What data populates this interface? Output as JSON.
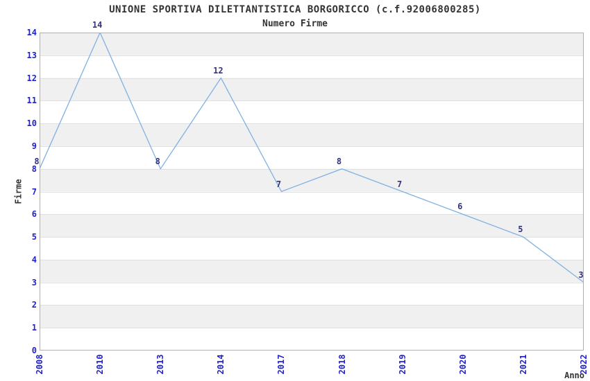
{
  "chart_data": {
    "type": "line",
    "title": "UNIONE SPORTIVA DILETTANTISTICA BORGORICCO (c.f.92006800285)",
    "subtitle": "Numero Firme",
    "xlabel": "Anno",
    "ylabel": "Firme",
    "categories": [
      "2008",
      "2010",
      "2013",
      "2014",
      "2017",
      "2018",
      "2019",
      "2020",
      "2021",
      "2022"
    ],
    "values": [
      8,
      14,
      8,
      12,
      7,
      8,
      7,
      6,
      5,
      3
    ],
    "ylim": [
      0,
      14
    ],
    "y_ticks": [
      0,
      1,
      2,
      3,
      4,
      5,
      6,
      7,
      8,
      9,
      10,
      11,
      12,
      13,
      14
    ],
    "legend": "none",
    "grid": "alternating horizontal bands on odd unit intervals, thin gridline at each integer",
    "x_tick_rotation_degrees": 90,
    "colors": {
      "line": "#7fb0e3",
      "tick_label": "#2222cc",
      "data_label": "#333380",
      "title_text": "#333333",
      "axis_label_text": "#333333",
      "band": "#f0f0f0",
      "gridline": "#e0e0e0",
      "spine": "#b0b0b0",
      "background": "#ffffff"
    }
  }
}
